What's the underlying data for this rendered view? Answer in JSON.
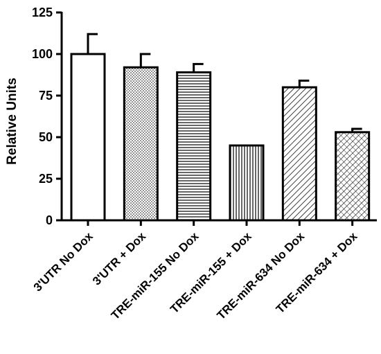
{
  "chart_data": {
    "type": "bar",
    "title": "",
    "xlabel": "",
    "ylabel": "Relative Units",
    "ylim": [
      0,
      125
    ],
    "yticks": [
      0,
      25,
      50,
      75,
      100,
      125
    ],
    "grid": false,
    "categories": [
      "3'UTR No Dox",
      "3'UTR + Dox",
      "TRE-miR-155 No Dox",
      "TRE-miR-155 + Dox",
      "TRE-miR-634 No Dox",
      "TRE-miR-634 + Dox"
    ],
    "values": [
      100,
      92,
      89,
      45,
      80,
      53
    ],
    "errors": [
      12,
      8,
      5,
      0,
      4,
      2
    ],
    "patterns": [
      "none",
      "dots",
      "horizontal-lines",
      "vertical-lines",
      "diagonal-lines",
      "crosshatch"
    ]
  }
}
